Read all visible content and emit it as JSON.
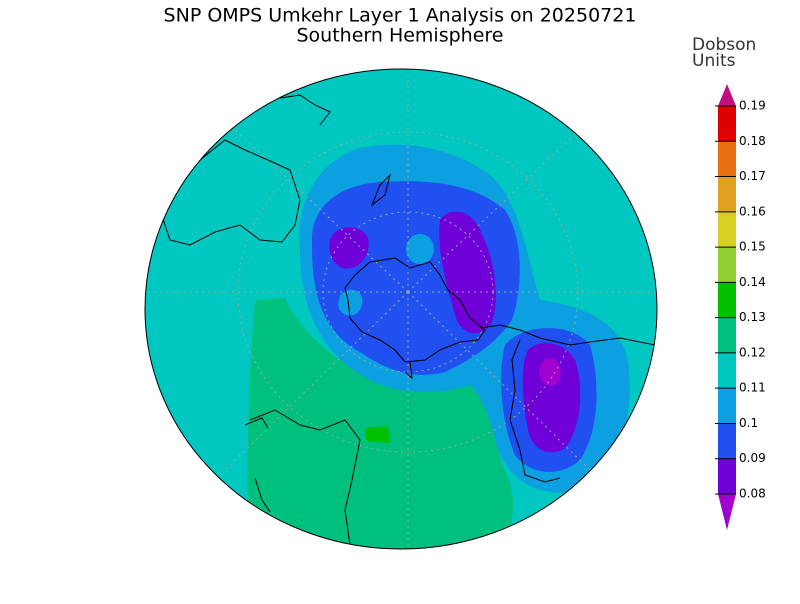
{
  "title": "SNP OMPS Umkehr Layer 1 Analysis on 20250721",
  "subtitle": "Southern Hemisphere",
  "colorbar": {
    "label": [
      "Dobson",
      "Units"
    ],
    "ticks": [
      0.08,
      0.09,
      0.1,
      0.11,
      0.12,
      0.13,
      0.14,
      0.15,
      0.16,
      0.17,
      0.18,
      0.19
    ],
    "colors": [
      "#a000d0",
      "#7000d8",
      "#2050f0",
      "#0ca0e0",
      "#00c8c0",
      "#00c080",
      "#00c000",
      "#90d030",
      "#d8d020",
      "#e0a020",
      "#e87010",
      "#e00000",
      "#c01080"
    ]
  }
}
